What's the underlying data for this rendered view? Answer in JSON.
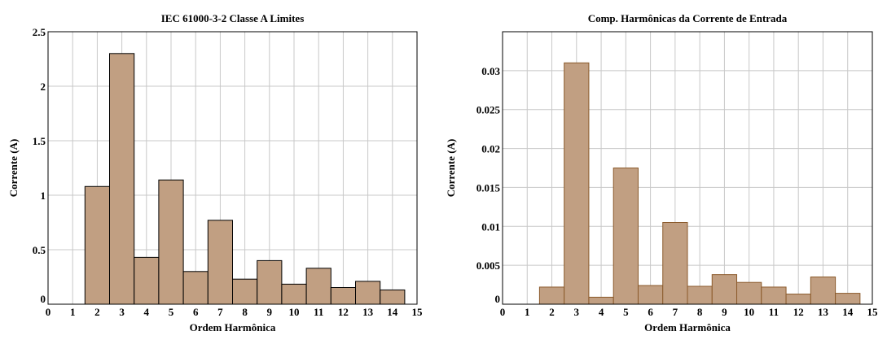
{
  "chart_data": [
    {
      "type": "bar",
      "title": "IEC 61000-3-2 Classe A Limites",
      "xlabel": "Ordem Harmônica",
      "ylabel": "Corrente (A)",
      "x": [
        2,
        3,
        4,
        5,
        6,
        7,
        8,
        9,
        10,
        11,
        12,
        13,
        14
      ],
      "values": [
        1.08,
        2.3,
        0.43,
        1.14,
        0.3,
        0.77,
        0.23,
        0.4,
        0.184,
        0.33,
        0.153,
        0.21,
        0.131
      ],
      "xlim": [
        0,
        15
      ],
      "ylim": [
        0,
        2.5
      ],
      "xticks": [
        "0",
        "1",
        "2",
        "3",
        "4",
        "5",
        "6",
        "7",
        "8",
        "9",
        "10",
        "11",
        "12",
        "13",
        "14",
        "15"
      ],
      "yticks": [
        "0",
        "0.5",
        "1",
        "1.5",
        "2",
        "2.5"
      ],
      "ytick_values": [
        0,
        0.5,
        1,
        1.5,
        2,
        2.5
      ],
      "grid": true,
      "bar_color": "#c19f82",
      "edge_color": "#000000"
    },
    {
      "type": "bar",
      "title": "Comp. Harmônicas da Corrente de Entrada",
      "xlabel": "Ordem Harmônica",
      "ylabel": "Corrente (A)",
      "x": [
        2,
        3,
        4,
        5,
        6,
        7,
        8,
        9,
        10,
        11,
        12,
        13,
        14
      ],
      "values": [
        0.0022,
        0.031,
        0.0009,
        0.0175,
        0.0024,
        0.0105,
        0.0023,
        0.0038,
        0.0028,
        0.0022,
        0.0013,
        0.0035,
        0.0014
      ],
      "xlim": [
        0,
        15
      ],
      "ylim": [
        0,
        0.035
      ],
      "xticks": [
        "0",
        "1",
        "2",
        "3",
        "4",
        "5",
        "6",
        "7",
        "8",
        "9",
        "10",
        "11",
        "12",
        "13",
        "14",
        "15"
      ],
      "yticks": [
        "0",
        "0.005",
        "0.01",
        "0.015",
        "0.02",
        "0.025",
        "0.03"
      ],
      "ytick_values": [
        0,
        0.005,
        0.01,
        0.015,
        0.02,
        0.025,
        0.03
      ],
      "grid": true,
      "bar_color": "#c19f82",
      "edge_color": "#8b5a2b"
    }
  ]
}
